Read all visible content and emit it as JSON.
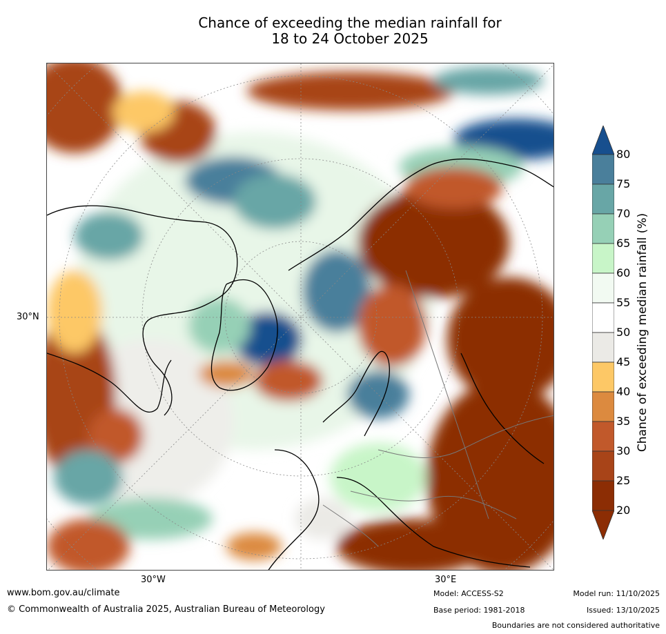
{
  "title_line1": "Chance of exceeding the median rainfall for",
  "title_line2": "18 to 24 October 2025",
  "map": {
    "lat_label": "30°N",
    "lon_labels": [
      "30°W",
      "30°E"
    ]
  },
  "colorbar": {
    "label": "Chance of exceeding median rainfall (%)",
    "ticks": [
      "20",
      "25",
      "30",
      "35",
      "40",
      "45",
      "50",
      "55",
      "60",
      "65",
      "70",
      "75",
      "80"
    ],
    "colors": [
      "#8c2d04",
      "#a84418",
      "#c1592b",
      "#dc8a3f",
      "#fdc866",
      "#ebeae6",
      "#ffffff",
      "#f2faf2",
      "#c8f5c8",
      "#96d0b6",
      "#68a6a6",
      "#4a7f9b",
      "#174f8e"
    ]
  },
  "footer": {
    "website": "www.bom.gov.au/climate",
    "copyright": "© Commonwealth of Australia 2025, Australian Bureau of Meteorology",
    "model": "Model: ACCESS-S2",
    "base_period": "Base period: 1981-2018",
    "model_run": "Model run: 11/10/2025",
    "issued": "Issued: 13/10/2025",
    "disclaimer": "Boundaries are not considered authoritative"
  }
}
